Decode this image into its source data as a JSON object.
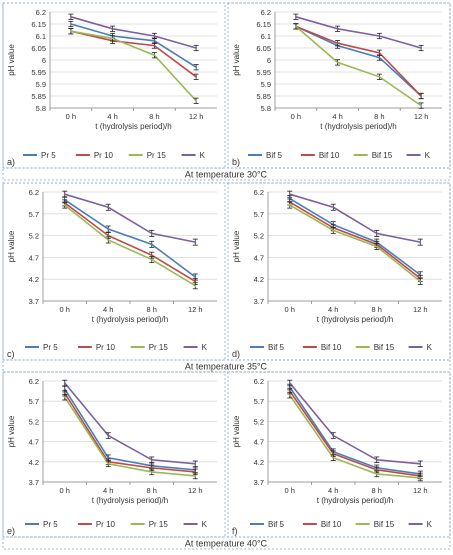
{
  "figure": {
    "bands": [
      {
        "caption": "At temperature 30°C"
      },
      {
        "caption": "At temperature 35°C"
      },
      {
        "caption": "At temperature 40°C"
      }
    ]
  },
  "chart_data": [
    {
      "panel": "a)",
      "type": "line",
      "categories": [
        "0 h",
        "4 h",
        "8 h",
        "12 h"
      ],
      "xlabel": "t (hydrolysis period)/h",
      "ylabel": "pH value",
      "ylim": [
        5.8,
        6.2
      ],
      "yticks": [
        5.8,
        5.85,
        5.9,
        5.95,
        6,
        6.05,
        6.1,
        6.15,
        6.2
      ],
      "grid": true,
      "legend": "bottom",
      "series": [
        {
          "name": "Pr 5",
          "color": "#4a7ebb",
          "values": [
            6.15,
            6.1,
            6.08,
            5.97
          ]
        },
        {
          "name": "Pr 10",
          "color": "#be4b48",
          "values": [
            6.12,
            6.08,
            6.06,
            5.93
          ]
        },
        {
          "name": "Pr 15",
          "color": "#98b954",
          "values": [
            6.12,
            6.09,
            6.02,
            5.83
          ]
        },
        {
          "name": "K",
          "color": "#7d60a0",
          "values": [
            6.18,
            6.13,
            6.1,
            6.05
          ]
        }
      ]
    },
    {
      "panel": "b)",
      "type": "line",
      "categories": [
        "0 h",
        "4 h",
        "8 h",
        "12 h"
      ],
      "xlabel": "t (hydrolysis period)/h",
      "ylabel": "pH value",
      "ylim": [
        5.8,
        6.2
      ],
      "yticks": [
        5.8,
        5.85,
        5.9,
        5.95,
        6,
        6.05,
        6.1,
        6.15,
        6.2
      ],
      "grid": true,
      "legend": "bottom",
      "series": [
        {
          "name": "Bif 5",
          "color": "#4a7ebb",
          "values": [
            6.14,
            6.06,
            6.01,
            5.85
          ]
        },
        {
          "name": "Bif 10",
          "color": "#be4b48",
          "values": [
            6.14,
            6.07,
            6.03,
            5.85
          ]
        },
        {
          "name": "Bif 15",
          "color": "#98b954",
          "values": [
            6.14,
            5.99,
            5.93,
            5.81
          ]
        },
        {
          "name": "K",
          "color": "#7d60a0",
          "values": [
            6.18,
            6.13,
            6.1,
            6.05
          ]
        }
      ]
    },
    {
      "panel": "c)",
      "type": "line",
      "categories": [
        "0 h",
        "4 h",
        "8 h",
        "12 h"
      ],
      "xlabel": "t (hydrolysis period)/h",
      "ylabel": "pH value",
      "ylim": [
        3.7,
        6.2
      ],
      "yticks": [
        3.7,
        4.2,
        4.7,
        5.2,
        5.7,
        6.2
      ],
      "grid": true,
      "legend": "bottom",
      "series": [
        {
          "name": "Pr 5",
          "color": "#4a7ebb",
          "values": [
            6.02,
            5.35,
            5.0,
            4.25
          ]
        },
        {
          "name": "Pr 10",
          "color": "#be4b48",
          "values": [
            5.95,
            5.2,
            4.75,
            4.15
          ]
        },
        {
          "name": "Pr 15",
          "color": "#98b954",
          "values": [
            5.9,
            5.1,
            4.65,
            4.05
          ]
        },
        {
          "name": "K",
          "color": "#7d60a0",
          "values": [
            6.15,
            5.85,
            5.25,
            5.05
          ]
        }
      ]
    },
    {
      "panel": "d)",
      "type": "line",
      "categories": [
        "0 h",
        "4 h",
        "8 h",
        "12 h"
      ],
      "xlabel": "t (hydrolysis period)/h",
      "ylabel": "pH value",
      "ylim": [
        3.7,
        6.2
      ],
      "yticks": [
        3.7,
        4.2,
        4.7,
        5.2,
        5.7,
        6.2
      ],
      "grid": true,
      "legend": "bottom",
      "series": [
        {
          "name": "Bif 5",
          "color": "#4a7ebb",
          "values": [
            6.05,
            5.45,
            5.05,
            4.3
          ]
        },
        {
          "name": "Bif 10",
          "color": "#be4b48",
          "values": [
            5.97,
            5.38,
            5.0,
            4.22
          ]
        },
        {
          "name": "Bif 15",
          "color": "#98b954",
          "values": [
            5.9,
            5.32,
            4.95,
            4.15
          ]
        },
        {
          "name": "K",
          "color": "#7d60a0",
          "values": [
            6.15,
            5.85,
            5.25,
            5.05
          ]
        }
      ]
    },
    {
      "panel": "e)",
      "type": "line",
      "categories": [
        "0 h",
        "4 h",
        "8 h",
        "12 h"
      ],
      "xlabel": "t (hydrolysis period)/h",
      "ylabel": "pH value",
      "ylim": [
        3.7,
        6.2
      ],
      "yticks": [
        3.7,
        4.2,
        4.7,
        5.2,
        5.7,
        6.2
      ],
      "grid": true,
      "legend": "bottom",
      "series": [
        {
          "name": "Pr 5",
          "color": "#4a7ebb",
          "values": [
            6.0,
            4.3,
            4.1,
            4.0
          ]
        },
        {
          "name": "Pr 10",
          "color": "#be4b48",
          "values": [
            5.9,
            4.2,
            4.05,
            3.95
          ]
        },
        {
          "name": "Pr 15",
          "color": "#98b954",
          "values": [
            5.8,
            4.15,
            3.95,
            3.85
          ]
        },
        {
          "name": "K",
          "color": "#7d60a0",
          "values": [
            6.15,
            4.85,
            4.25,
            4.15
          ]
        }
      ]
    },
    {
      "panel": "f)",
      "type": "line",
      "categories": [
        "0 h",
        "4 h",
        "8 h",
        "12 h"
      ],
      "xlabel": "t (hydrolysis period)/h",
      "ylabel": "pH value",
      "ylim": [
        3.7,
        6.2
      ],
      "yticks": [
        3.7,
        4.2,
        4.7,
        5.2,
        5.7,
        6.2
      ],
      "grid": true,
      "legend": "bottom",
      "series": [
        {
          "name": "Bif 5",
          "color": "#4a7ebb",
          "values": [
            6.05,
            4.45,
            4.05,
            3.9
          ]
        },
        {
          "name": "Bif 10",
          "color": "#be4b48",
          "values": [
            5.95,
            4.4,
            4.0,
            3.85
          ]
        },
        {
          "name": "Bif 15",
          "color": "#98b954",
          "values": [
            5.85,
            4.3,
            3.9,
            3.8
          ]
        },
        {
          "name": "K",
          "color": "#7d60a0",
          "values": [
            6.15,
            4.85,
            4.25,
            4.15
          ]
        }
      ]
    }
  ]
}
